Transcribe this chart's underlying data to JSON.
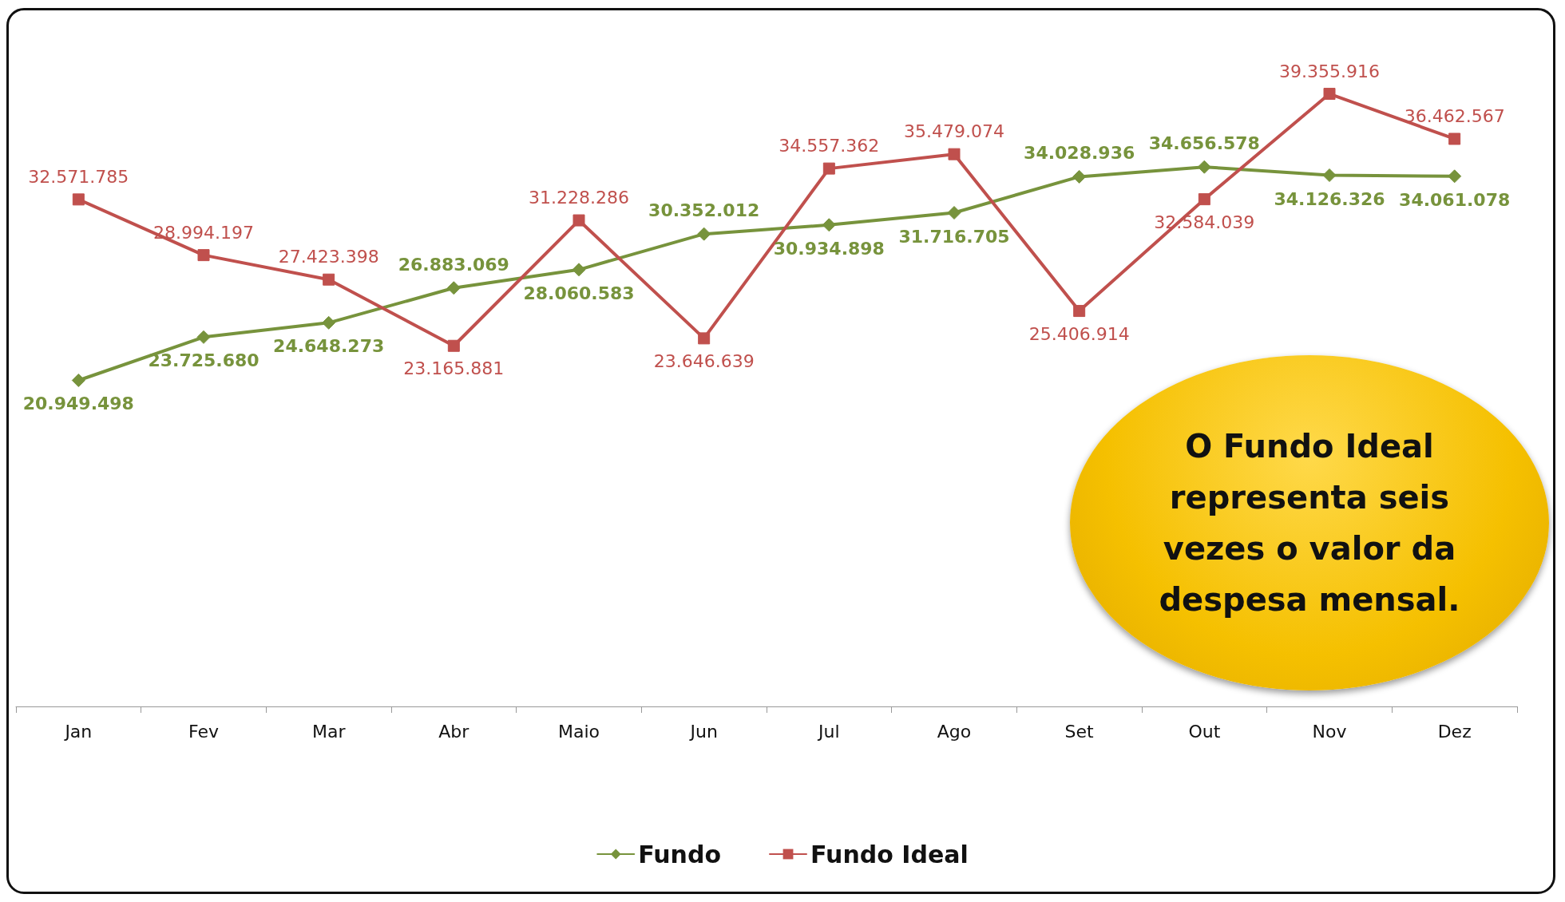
{
  "chart_data": {
    "type": "line",
    "categories": [
      "Jan",
      "Fev",
      "Mar",
      "Abr",
      "Maio",
      "Jun",
      "Jul",
      "Ago",
      "Set",
      "Out",
      "Nov",
      "Dez"
    ],
    "series": [
      {
        "name": "Fundo",
        "color": "#77933c",
        "marker": "diamond",
        "values": [
          20949498,
          23725680,
          24648273,
          26883069,
          28060583,
          30352012,
          30934898,
          31716705,
          34028936,
          34656578,
          34126326,
          34061078
        ],
        "value_labels": [
          "20.949.498",
          "23.725.680",
          "24.648.273",
          "26.883.069",
          "28.060.583",
          "30.352.012",
          "30.934.898",
          "31.716.705",
          "34.028.936",
          "34.656.578",
          "34.126.326",
          "34.061.078"
        ]
      },
      {
        "name": "Fundo Ideal",
        "color": "#c0504d",
        "marker": "square",
        "values": [
          32571785,
          28994197,
          27423398,
          23165881,
          31228286,
          23646639,
          34557362,
          35479074,
          25406914,
          32584039,
          39355916,
          36462567
        ],
        "value_labels": [
          "32.571.785",
          "28.994.197",
          "27.423.398",
          "23.165.881",
          "31.228.286",
          "23.646.639",
          "34.557.362",
          "35.479.074",
          "25.406.914",
          "32.584.039",
          "39.355.916",
          "36.462.567"
        ]
      }
    ],
    "tick_labels": "x",
    "grid": false,
    "legend": "bottom",
    "annotations": [
      "O Fundo Ideal representa seis vezes o valor da despesa mensal."
    ]
  }
}
